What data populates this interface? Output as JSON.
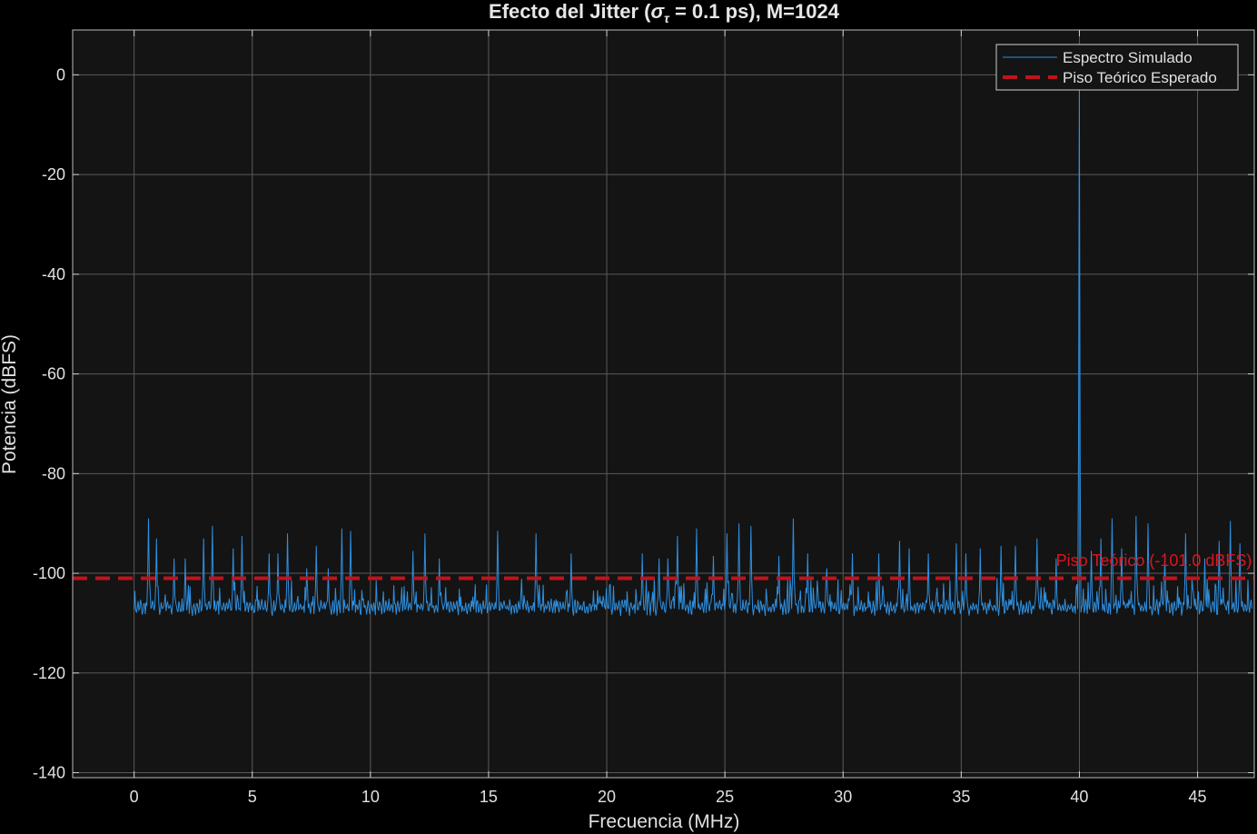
{
  "chart_data": {
    "type": "line",
    "title": "Efecto del Jitter (σ_τ = 0.1 ps), M=1024",
    "title_parts": {
      "prefix": "Efecto del Jitter (",
      "sigma": "σ",
      "sigma_sub": "τ",
      "suffix": " = 0.1 ps), M=1024"
    },
    "xlabel": "Frecuencia (MHz)",
    "ylabel": "Potencia (dBFS)",
    "xlim": [
      -2.6,
      47.4
    ],
    "ylim": [
      -141,
      9
    ],
    "xticks": [
      0,
      5,
      10,
      15,
      20,
      25,
      30,
      35,
      40,
      45
    ],
    "xtick_labels": [
      "0",
      "5",
      "10",
      "15",
      "20",
      "25",
      "30",
      "35",
      "40",
      "45"
    ],
    "yticks": [
      0,
      -20,
      -40,
      -60,
      -80,
      -100,
      -120,
      -140
    ],
    "ytick_labels": [
      "0",
      "-20",
      "-40",
      "-60",
      "-80",
      "-100",
      "-120",
      "-140"
    ],
    "grid": true,
    "legend_position": "top-right",
    "background": "#141414",
    "series": [
      {
        "name": "Espectro Simulado",
        "style": "solid",
        "color": "#2e8fdf",
        "x_range": [
          0,
          47.3
        ],
        "noise_floor": -106,
        "signal_peak": {
          "x": 40.0,
          "y": -1
        },
        "spurs": [
          {
            "x": 0.6,
            "y": -89
          },
          {
            "x": 0.95,
            "y": -93
          },
          {
            "x": 1.7,
            "y": -97
          },
          {
            "x": 2.15,
            "y": -97
          },
          {
            "x": 2.95,
            "y": -93
          },
          {
            "x": 3.3,
            "y": -90.5
          },
          {
            "x": 4.2,
            "y": -95
          },
          {
            "x": 4.55,
            "y": -92.5
          },
          {
            "x": 5.7,
            "y": -96
          },
          {
            "x": 6.1,
            "y": -96
          },
          {
            "x": 6.5,
            "y": -92
          },
          {
            "x": 7.3,
            "y": -99
          },
          {
            "x": 7.7,
            "y": -94.5
          },
          {
            "x": 8.2,
            "y": -99
          },
          {
            "x": 8.8,
            "y": -91
          },
          {
            "x": 9.15,
            "y": -91.5
          },
          {
            "x": 11.8,
            "y": -95.5
          },
          {
            "x": 12.3,
            "y": -92
          },
          {
            "x": 12.9,
            "y": -97
          },
          {
            "x": 15.4,
            "y": -91.5
          },
          {
            "x": 17.0,
            "y": -92
          },
          {
            "x": 18.5,
            "y": -96
          },
          {
            "x": 21.5,
            "y": -96
          },
          {
            "x": 22.2,
            "y": -97
          },
          {
            "x": 22.6,
            "y": -97
          },
          {
            "x": 23.0,
            "y": -92.5
          },
          {
            "x": 23.8,
            "y": -91
          },
          {
            "x": 24.5,
            "y": -96.5
          },
          {
            "x": 25.1,
            "y": -92
          },
          {
            "x": 25.6,
            "y": -90
          },
          {
            "x": 26.1,
            "y": -90.5
          },
          {
            "x": 27.3,
            "y": -96.5
          },
          {
            "x": 27.9,
            "y": -89
          },
          {
            "x": 28.5,
            "y": -96
          },
          {
            "x": 29.3,
            "y": -99
          },
          {
            "x": 30.4,
            "y": -96
          },
          {
            "x": 31.5,
            "y": -96
          },
          {
            "x": 32.4,
            "y": -93.5
          },
          {
            "x": 32.8,
            "y": -95
          },
          {
            "x": 33.6,
            "y": -96
          },
          {
            "x": 34.8,
            "y": -94
          },
          {
            "x": 35.2,
            "y": -96
          },
          {
            "x": 35.8,
            "y": -95
          },
          {
            "x": 36.7,
            "y": -94.5
          },
          {
            "x": 37.3,
            "y": -94.5
          },
          {
            "x": 38.2,
            "y": -93
          },
          {
            "x": 39.0,
            "y": -97
          },
          {
            "x": 40.5,
            "y": -95.5
          },
          {
            "x": 40.9,
            "y": -93
          },
          {
            "x": 41.4,
            "y": -89
          },
          {
            "x": 41.8,
            "y": -95
          },
          {
            "x": 42.4,
            "y": -88.5
          },
          {
            "x": 42.9,
            "y": -90
          },
          {
            "x": 43.6,
            "y": -96
          },
          {
            "x": 44.5,
            "y": -92
          },
          {
            "x": 45.3,
            "y": -97
          },
          {
            "x": 45.9,
            "y": -93.5
          },
          {
            "x": 46.4,
            "y": -89.5
          },
          {
            "x": 46.8,
            "y": -94
          }
        ]
      },
      {
        "name": "Piso Teórico Esperado",
        "style": "dashed",
        "color": "#c0141c",
        "y": -101
      }
    ],
    "annotations": [
      {
        "text": "Piso Teórico (-101.0 dBFS)",
        "x": 47.3,
        "y": -98.5,
        "color": "#e0141c",
        "anchor": "end"
      }
    ]
  }
}
